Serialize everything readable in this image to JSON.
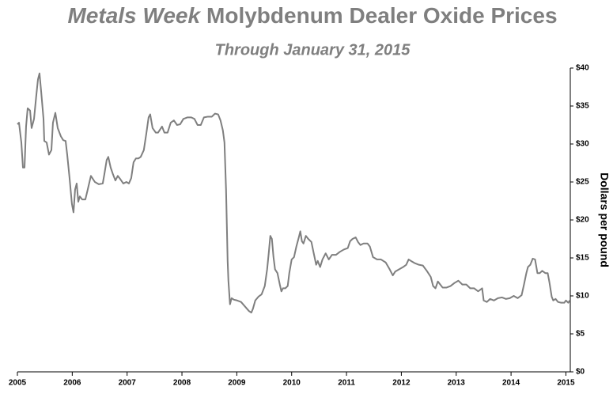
{
  "chart_data": {
    "type": "line",
    "title": [
      "Metals Week",
      "Molybdenum Dealer Oxide Prices"
    ],
    "subtitle": "Through January 31, 2015",
    "y_label": "Dollars per pound",
    "color": "#7f7f7f",
    "xlim": [
      2005,
      2015.08
    ],
    "xticks": [
      2005,
      2006,
      2007,
      2008,
      2009,
      2010,
      2011,
      2012,
      2013,
      2014,
      2015
    ],
    "ylim": [
      0,
      40
    ],
    "yticks": [
      {
        "value": 0,
        "label": "$0"
      },
      {
        "value": 5,
        "label": "$5"
      },
      {
        "value": 10,
        "label": "$10"
      },
      {
        "value": 15,
        "label": "$15"
      },
      {
        "value": 20,
        "label": "$20"
      },
      {
        "value": 25,
        "label": "$25"
      },
      {
        "value": 30,
        "label": "$30"
      },
      {
        "value": 35,
        "label": "$35"
      },
      {
        "value": 40,
        "label": "$40"
      }
    ],
    "x": [
      2005.0,
      2005.029,
      2005.072,
      2005.101,
      2005.13,
      2005.158,
      2005.187,
      2005.231,
      2005.259,
      2005.303,
      2005.346,
      2005.375,
      2005.403,
      2005.432,
      2005.476,
      2005.49,
      2005.533,
      2005.576,
      2005.62,
      2005.648,
      2005.692,
      2005.735,
      2005.793,
      2005.836,
      2005.879,
      2005.908,
      2005.951,
      2005.994,
      2006.023,
      2006.052,
      2006.081,
      2006.11,
      2006.138,
      2006.182,
      2006.239,
      2006.282,
      2006.34,
      2006.412,
      2006.484,
      2006.556,
      2006.585,
      2006.628,
      2006.657,
      2006.7,
      2006.743,
      2006.787,
      2006.83,
      2006.873,
      2006.931,
      2006.988,
      2007.032,
      2007.075,
      2007.118,
      2007.161,
      2007.205,
      2007.248,
      2007.305,
      2007.349,
      2007.392,
      2007.421,
      2007.464,
      2007.522,
      2007.565,
      2007.637,
      2007.68,
      2007.738,
      2007.795,
      2007.853,
      2007.911,
      2007.968,
      2008.026,
      2008.098,
      2008.17,
      2008.228,
      2008.285,
      2008.343,
      2008.401,
      2008.473,
      2008.545,
      2008.602,
      2008.66,
      2008.703,
      2008.746,
      2008.775,
      2008.804,
      2008.833,
      2008.847,
      2008.876,
      2008.905,
      2008.948,
      2009.006,
      2009.078,
      2009.15,
      2009.222,
      2009.265,
      2009.294,
      2009.337,
      2009.395,
      2009.452,
      2009.51,
      2009.553,
      2009.582,
      2009.611,
      2009.64,
      2009.669,
      2009.697,
      2009.741,
      2009.784,
      2009.813,
      2009.841,
      2009.885,
      2009.928,
      2009.957,
      2010.0,
      2010.043,
      2010.086,
      2010.13,
      2010.158,
      2010.187,
      2010.216,
      2010.259,
      2010.303,
      2010.36,
      2010.403,
      2010.447,
      2010.476,
      2010.519,
      2010.562,
      2010.62,
      2010.677,
      2010.735,
      2010.807,
      2010.879,
      2010.951,
      2011.023,
      2011.066,
      2011.109,
      2011.167,
      2011.21,
      2011.253,
      2011.311,
      2011.383,
      2011.426,
      2011.484,
      2011.556,
      2011.628,
      2011.715,
      2011.787,
      2011.844,
      2011.888,
      2011.96,
      2012.032,
      2012.089,
      2012.133,
      2012.176,
      2012.248,
      2012.32,
      2012.392,
      2012.464,
      2012.536,
      2012.579,
      2012.622,
      2012.666,
      2012.709,
      2012.752,
      2012.824,
      2012.896,
      2012.968,
      2013.04,
      2013.112,
      2013.184,
      2013.256,
      2013.328,
      2013.4,
      2013.473,
      2013.501,
      2013.559,
      2013.617,
      2013.689,
      2013.761,
      2013.833,
      2013.905,
      2013.977,
      2014.049,
      2014.121,
      2014.193,
      2014.236,
      2014.279,
      2014.308,
      2014.351,
      2014.395,
      2014.438,
      2014.481,
      2014.524,
      2014.567,
      2014.625,
      2014.668,
      2014.697,
      2014.741,
      2014.769,
      2014.812,
      2014.856,
      2014.913,
      2014.971,
      2015.0,
      2015.043,
      2015.072
    ],
    "values": [
      32.6,
      32.8,
      30.2,
      26.9,
      26.9,
      32.3,
      34.7,
      34.4,
      32.1,
      33.3,
      36.5,
      38.5,
      39.3,
      37.0,
      33.3,
      30.4,
      30.2,
      28.6,
      29.2,
      32.8,
      34.1,
      32.1,
      31.0,
      30.5,
      30.4,
      28.6,
      25.5,
      22.1,
      21.0,
      24.0,
      24.8,
      22.4,
      23.1,
      22.7,
      22.7,
      24.0,
      25.8,
      25.0,
      24.7,
      24.8,
      26.0,
      27.9,
      28.3,
      26.9,
      26.0,
      25.2,
      25.8,
      25.4,
      24.8,
      25.0,
      24.8,
      25.5,
      27.6,
      28.1,
      28.1,
      28.3,
      29.2,
      31.3,
      33.5,
      33.9,
      32.1,
      31.5,
      31.5,
      32.3,
      31.5,
      31.5,
      32.8,
      33.1,
      32.5,
      32.6,
      33.3,
      33.5,
      33.5,
      33.3,
      32.5,
      32.5,
      33.5,
      33.6,
      33.6,
      34.0,
      33.9,
      33.1,
      31.8,
      30.2,
      24.0,
      14.6,
      12.0,
      8.9,
      9.7,
      9.5,
      9.4,
      9.2,
      8.6,
      8.0,
      7.8,
      8.3,
      9.4,
      9.9,
      10.2,
      11.3,
      13.5,
      15.6,
      17.9,
      17.5,
      15.1,
      13.5,
      13.0,
      11.5,
      10.6,
      11.0,
      11.0,
      11.3,
      13.0,
      14.8,
      15.1,
      16.5,
      17.7,
      18.5,
      17.2,
      16.9,
      17.9,
      17.5,
      17.1,
      15.6,
      14.1,
      14.6,
      13.8,
      14.8,
      15.6,
      14.8,
      15.4,
      15.4,
      15.8,
      16.1,
      16.3,
      17.2,
      17.5,
      17.7,
      17.1,
      16.7,
      16.9,
      16.9,
      16.5,
      15.1,
      14.8,
      14.8,
      14.4,
      13.5,
      12.7,
      13.2,
      13.5,
      13.8,
      14.1,
      14.8,
      14.6,
      14.3,
      14.1,
      14.0,
      13.3,
      12.5,
      11.3,
      11.0,
      11.9,
      11.5,
      11.1,
      11.1,
      11.3,
      11.7,
      12.0,
      11.5,
      11.5,
      11.0,
      11.0,
      10.6,
      11.0,
      9.4,
      9.2,
      9.6,
      9.4,
      9.7,
      9.8,
      9.6,
      9.7,
      10.0,
      9.7,
      10.1,
      11.5,
      13.0,
      13.8,
      14.1,
      14.9,
      14.8,
      13.0,
      13.0,
      13.3,
      13.0,
      13.0,
      11.9,
      9.9,
      9.4,
      9.6,
      9.2,
      9.1,
      9.1,
      9.4,
      9.1,
      9.4
    ]
  }
}
